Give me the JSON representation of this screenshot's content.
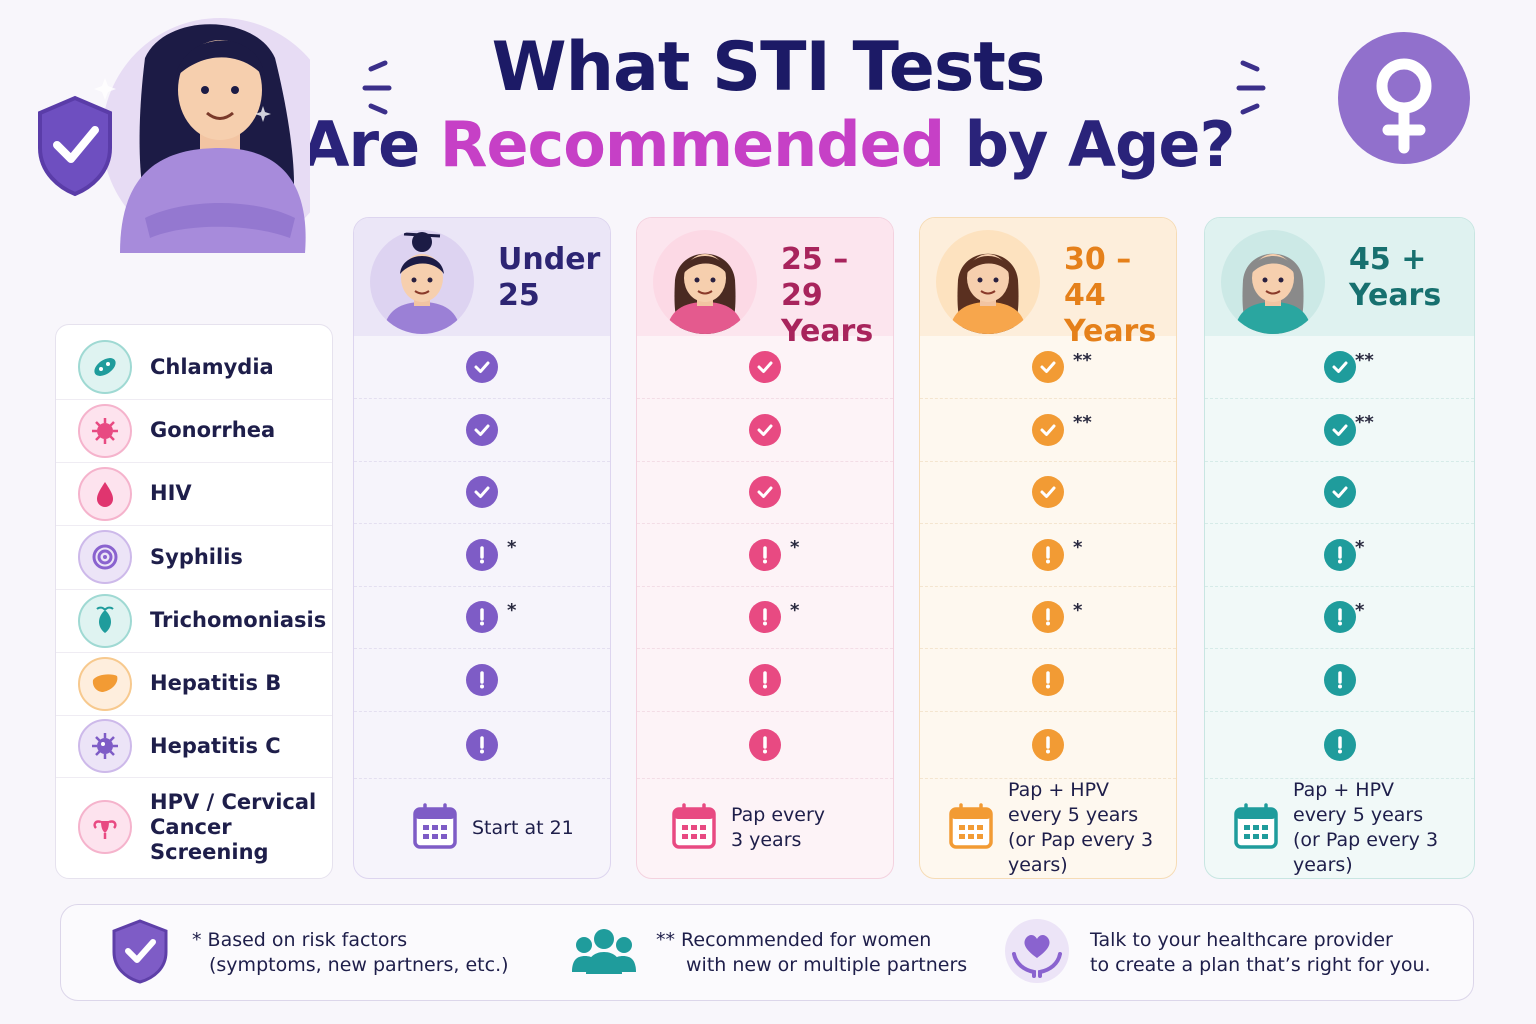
{
  "title": {
    "line1": "What STI Tests",
    "line2_a": "Are ",
    "line2_b": "Recommended",
    "line2_c": " by Age?"
  },
  "colors": {
    "under25": "#7e5cc6",
    "age25": "#e84a82",
    "age30": "#f29b34",
    "age45": "#1f9c9c"
  },
  "icons": {
    "hero": "woman-with-shield",
    "female": "female-symbol-icon"
  },
  "tests": [
    {
      "name": "Chlamydia",
      "icon": "bacteria-icon"
    },
    {
      "name": "Gonorrhea",
      "icon": "virus-icon"
    },
    {
      "name": "HIV",
      "icon": "blood-drop-icon"
    },
    {
      "name": "Syphilis",
      "icon": "target-icon"
    },
    {
      "name": "Trichomoniasis",
      "icon": "parasite-icon"
    },
    {
      "name": "Hepatitis B",
      "icon": "liver-icon"
    },
    {
      "name": "Hepatitis C",
      "icon": "virus-icon"
    },
    {
      "name": "HPV / Cervical\nCancer Screening",
      "icon": "uterus-icon"
    }
  ],
  "columns": [
    {
      "label_a": "Under",
      "label_b": "25",
      "marks": [
        "check",
        "check",
        "check",
        "alert",
        "alert",
        "alert",
        "alert"
      ],
      "stars": [
        "",
        "",
        "",
        "*",
        "*",
        "",
        ""
      ],
      "screening": "Start at 21"
    },
    {
      "label_a": "25 – 29",
      "label_b": "Years",
      "marks": [
        "check",
        "check",
        "check",
        "alert",
        "alert",
        "alert",
        "alert"
      ],
      "stars": [
        "",
        "",
        "",
        "*",
        "*",
        "",
        ""
      ],
      "screening": "Pap every\n3 years"
    },
    {
      "label_a": "30 – 44",
      "label_b": "Years",
      "marks": [
        "check",
        "check",
        "check",
        "alert",
        "alert",
        "alert",
        "alert"
      ],
      "stars": [
        "**",
        "**",
        "",
        "*",
        "*",
        "",
        ""
      ],
      "screening": "Pap + HPV\nevery 5 years\n(or Pap every 3 years)"
    },
    {
      "label_a": "45 +",
      "label_b": "Years",
      "marks": [
        "check",
        "check",
        "check",
        "alert",
        "alert",
        "alert",
        "alert"
      ],
      "stars": [
        "**",
        "**",
        "",
        "*",
        "*",
        "",
        ""
      ],
      "screening": "Pap + HPV\nevery 5 years\n(or Pap every 3 years)"
    }
  ],
  "footer": {
    "note1_a": "* Based on risk factors",
    "note1_b": "(symptoms, new partners, etc.)",
    "note2_a": "** Recommended for women",
    "note2_b": "with new or multiple partners",
    "note3_a": "Talk to your healthcare provider",
    "note3_b": "to create a plan that’s right for you."
  }
}
